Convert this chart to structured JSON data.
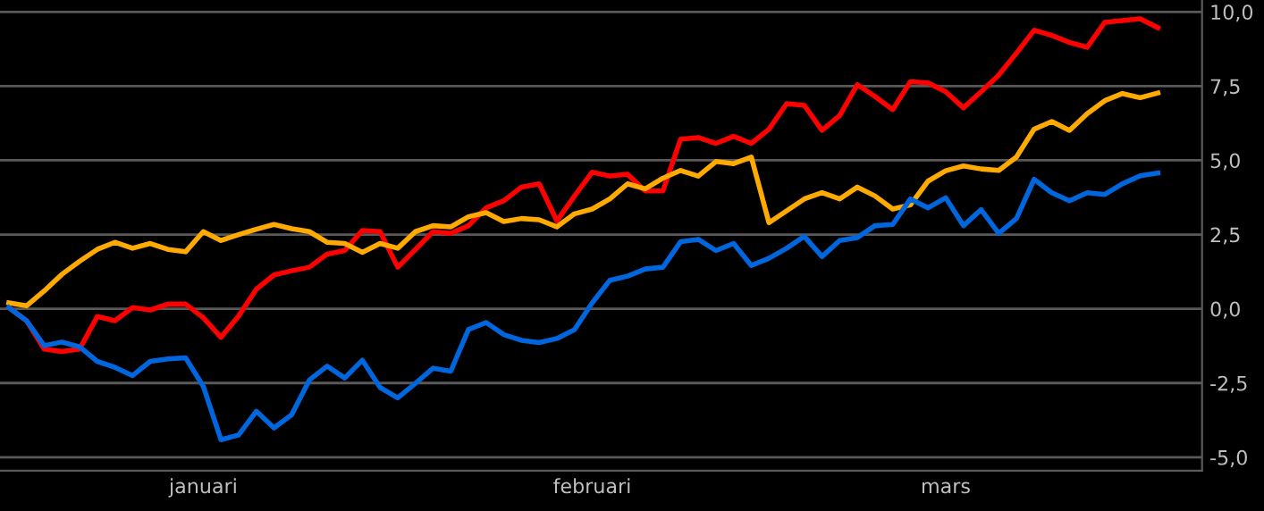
{
  "chart_data": {
    "type": "line",
    "categories": [
      null,
      null,
      null,
      null,
      null,
      null,
      null,
      null,
      null,
      null,
      null,
      "januari",
      null,
      null,
      null,
      null,
      null,
      null,
      null,
      null,
      null,
      null,
      null,
      null,
      null,
      null,
      null,
      null,
      null,
      null,
      null,
      null,
      null,
      "februari",
      null,
      null,
      null,
      null,
      null,
      null,
      null,
      null,
      null,
      null,
      null,
      null,
      null,
      null,
      null,
      null,
      null,
      null,
      null,
      "mars",
      null,
      null,
      null,
      null,
      null,
      null,
      null,
      null,
      null,
      null,
      null,
      null
    ],
    "series": [
      {
        "color": "#ff0000",
        "values": [
          0.04,
          -0.4,
          -1.36,
          -1.44,
          -1.36,
          -0.26,
          -0.4,
          0.04,
          -0.04,
          0.16,
          0.16,
          -0.3,
          -0.96,
          -0.24,
          0.66,
          1.14,
          1.28,
          1.4,
          1.84,
          1.96,
          2.64,
          2.6,
          1.4,
          2.0,
          2.6,
          2.54,
          2.8,
          3.4,
          3.64,
          4.1,
          4.21,
          2.96,
          3.8,
          4.6,
          4.47,
          4.53,
          3.97,
          3.97,
          5.71,
          5.77,
          5.57,
          5.81,
          5.57,
          6.05,
          6.91,
          6.85,
          6.01,
          6.51,
          7.55,
          7.15,
          6.71,
          7.65,
          7.61,
          7.31,
          6.77,
          7.31,
          7.87,
          8.61,
          9.38,
          9.21,
          8.97,
          8.81,
          9.65,
          9.71,
          9.77,
          9.47
        ]
      },
      {
        "color": "#ffaa00",
        "values": [
          0.2,
          0.1,
          0.6,
          1.16,
          1.6,
          2.0,
          2.24,
          2.04,
          2.2,
          2.0,
          1.92,
          2.6,
          2.3,
          2.5,
          2.68,
          2.84,
          2.7,
          2.6,
          2.24,
          2.2,
          1.9,
          2.2,
          2.04,
          2.6,
          2.8,
          2.76,
          3.1,
          3.24,
          2.94,
          3.04,
          3.0,
          2.76,
          3.2,
          3.36,
          3.7,
          4.21,
          4.04,
          4.4,
          4.66,
          4.47,
          4.96,
          4.89,
          5.11,
          2.9,
          3.3,
          3.7,
          3.91,
          3.7,
          4.1,
          3.8,
          3.36,
          3.5,
          4.3,
          4.65,
          4.81,
          4.71,
          4.66,
          5.11,
          6.05,
          6.31,
          6.01,
          6.57,
          7.01,
          7.25,
          7.11,
          7.27
        ]
      },
      {
        "color": "#0066dd",
        "values": [
          0.04,
          -0.4,
          -1.24,
          -1.12,
          -1.28,
          -1.77,
          -1.97,
          -2.25,
          -1.77,
          -1.69,
          -1.65,
          -2.61,
          -4.41,
          -4.25,
          -3.45,
          -4.01,
          -3.57,
          -2.4,
          -1.93,
          -2.33,
          -1.73,
          -2.65,
          -3.0,
          -2.51,
          -2.0,
          -2.1,
          -0.7,
          -0.46,
          -0.87,
          -1.06,
          -1.14,
          -1.0,
          -0.7,
          0.2,
          0.96,
          1.1,
          1.34,
          1.4,
          2.26,
          2.34,
          1.96,
          2.2,
          1.46,
          1.7,
          2.04,
          2.44,
          1.76,
          2.3,
          2.4,
          2.8,
          2.84,
          3.7,
          3.4,
          3.74,
          2.8,
          3.34,
          2.54,
          3.04,
          4.36,
          3.91,
          3.64,
          3.91,
          3.85,
          4.21,
          4.48,
          4.57
        ]
      }
    ],
    "ylim": [
      -5.45,
      10.4
    ],
    "yticks": [
      {
        "value": -5,
        "label": "-5,0"
      },
      {
        "value": -2.5,
        "label": "-2,5"
      },
      {
        "value": 0,
        "label": "0,0"
      },
      {
        "value": 2.5,
        "label": "2,5"
      },
      {
        "value": 5,
        "label": "5,0"
      },
      {
        "value": 7.5,
        "label": "7,5"
      },
      {
        "value": 10,
        "label": "10,0"
      }
    ],
    "grid": "y",
    "marker": "none",
    "line_style": "solid"
  }
}
